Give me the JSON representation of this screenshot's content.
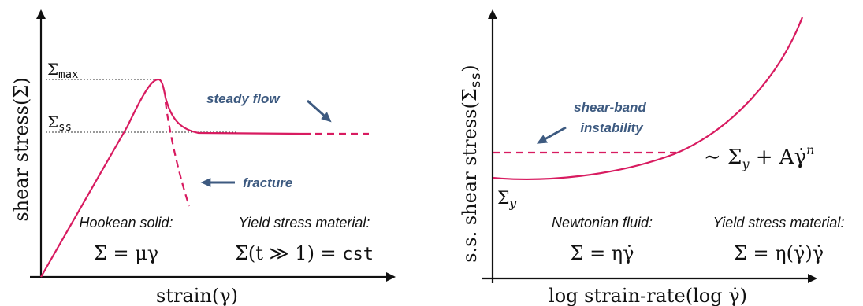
{
  "colors": {
    "curve": "#d81b60",
    "annotation": "#3d5a80",
    "axis": "#111111",
    "guide": "#333333"
  },
  "left_panel": {
    "y_axis_label": "shear stress(Σ)",
    "x_axis_label": "strain(γ)",
    "sigma_max_label": "Σ",
    "sigma_max_sub": "max",
    "sigma_ss_label": "Σ",
    "sigma_ss_sub": "ss",
    "steady_flow": "steady flow",
    "fracture": "fracture",
    "hookean_title": "Hookean solid:",
    "hookean_eq": "Σ = μγ",
    "yield_title": "Yield stress material:",
    "yield_eq_prefix": "Σ(t ≫ 1) = ",
    "yield_eq_const": "cst"
  },
  "right_panel": {
    "y_axis_label_prefix": "s.s.  shear stress(Σ",
    "y_axis_label_sub": "ss",
    "y_axis_label_suffix": ")",
    "x_axis_label": "log strain-rate(log γ̇)",
    "shear_band_line1": "shear-band",
    "shear_band_line2": "instability",
    "power_law": "∼ Σ",
    "power_law_sub": "y",
    "power_law_rest": " + Aγ̇",
    "power_law_sup": "n",
    "sigma_y_label": "Σ",
    "sigma_y_sub": "y",
    "newtonian_title": "Newtonian fluid:",
    "newtonian_eq": "Σ = ηγ̇",
    "yield_title": "Yield stress material:",
    "yield_eq": "Σ = η(γ̇)γ̇"
  }
}
